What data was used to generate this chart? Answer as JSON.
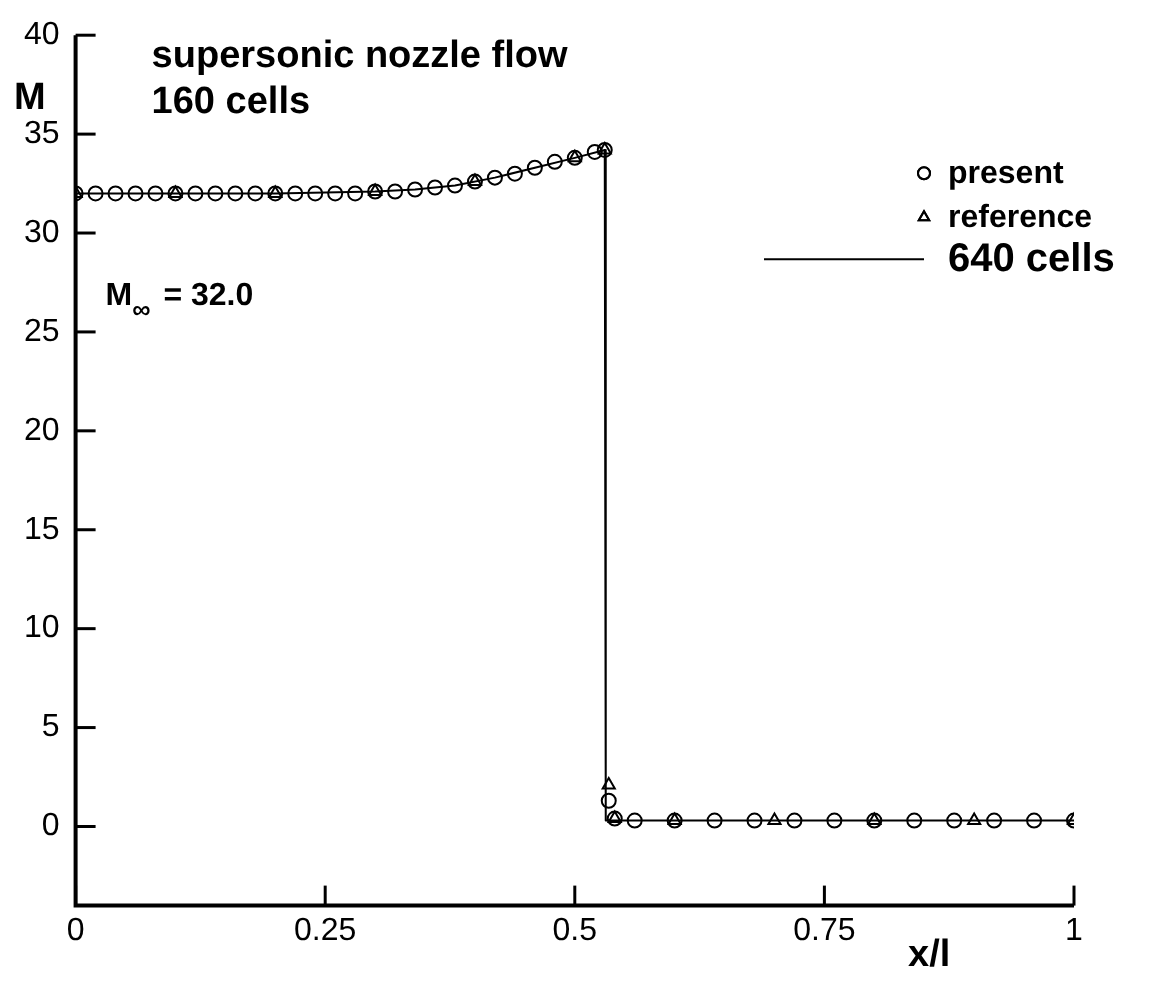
{
  "chart_data": {
    "type": "scatter",
    "title": "supersonic nozzle flow",
    "subtitle": "160 cells",
    "xlabel": "x/l",
    "ylabel": "M",
    "annotations": [
      "M$_{∞}$ = 32.0"
    ],
    "xlim": [
      0,
      1
    ],
    "ylim": [
      -4,
      40
    ],
    "xticks": [
      0,
      0.25,
      0.5,
      0.75,
      1
    ],
    "yticks": [
      0,
      5,
      10,
      15,
      20,
      25,
      30,
      35,
      40
    ],
    "grid": false,
    "legend": "top right",
    "series": [
      {
        "name": "present",
        "marker": "circle",
        "color": "#000000",
        "x": [
          0,
          0.02,
          0.04,
          0.06,
          0.08,
          0.1,
          0.12,
          0.14,
          0.16,
          0.18,
          0.2,
          0.22,
          0.24,
          0.26,
          0.28,
          0.3,
          0.32,
          0.34,
          0.36,
          0.38,
          0.4,
          0.42,
          0.44,
          0.46,
          0.48,
          0.5,
          0.52,
          0.53,
          0.534,
          0.54,
          0.56,
          0.6,
          0.64,
          0.68,
          0.72,
          0.76,
          0.8,
          0.84,
          0.88,
          0.92,
          0.96,
          1
        ],
        "values": [
          32,
          32,
          32,
          32,
          32,
          32,
          32,
          32,
          32,
          32,
          32,
          32,
          32,
          32,
          32,
          32.1,
          32.1,
          32.2,
          32.3,
          32.4,
          32.6,
          32.8,
          33,
          33.3,
          33.6,
          33.8,
          34.1,
          34.2,
          1.3,
          0.4,
          0.3,
          0.3,
          0.3,
          0.3,
          0.3,
          0.3,
          0.3,
          0.3,
          0.3,
          0.3,
          0.3,
          0.3
        ]
      },
      {
        "name": "reference",
        "marker": "triangle",
        "color": "#000000",
        "x": [
          0,
          0.1,
          0.2,
          0.3,
          0.4,
          0.5,
          0.53,
          0.534,
          0.54,
          0.6,
          0.7,
          0.8,
          0.9,
          1
        ],
        "values": [
          32,
          32,
          32,
          32.1,
          32.6,
          33.8,
          34.2,
          2.1,
          0.4,
          0.3,
          0.3,
          0.3,
          0.3,
          0.3
        ]
      },
      {
        "name": "640 cells",
        "type": "line",
        "marker": "none",
        "line_style": "solid",
        "color": "#000000",
        "x": [
          0,
          0.1,
          0.2,
          0.3,
          0.34,
          0.38,
          0.42,
          0.46,
          0.5,
          0.53,
          0.531,
          0.54,
          1
        ],
        "values": [
          32,
          32,
          32,
          32.1,
          32.2,
          32.4,
          32.8,
          33.3,
          33.8,
          34.2,
          0.3,
          0.3,
          0.3
        ]
      }
    ]
  }
}
